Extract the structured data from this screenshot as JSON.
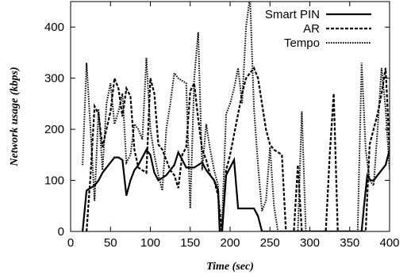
{
  "chart_data": {
    "type": "line",
    "title": "",
    "xlabel": "Time (sec)",
    "ylabel": "Network usage (kbps)",
    "xlim": [
      0,
      400
    ],
    "ylim": [
      0,
      450
    ],
    "xticks": [
      0,
      50,
      100,
      150,
      200,
      250,
      300,
      350,
      400
    ],
    "yticks": [
      0,
      100,
      200,
      300,
      400
    ],
    "grid": false,
    "legend_position": "top-right",
    "series": [
      {
        "name": "Smart PIN",
        "style": "solid",
        "color": "#000000",
        "x": [
          15,
          20,
          25,
          30,
          35,
          40,
          45,
          50,
          55,
          60,
          65,
          70,
          75,
          80,
          85,
          90,
          95,
          100,
          105,
          110,
          115,
          120,
          125,
          130,
          135,
          140,
          145,
          150,
          155,
          160,
          165,
          170,
          175,
          180,
          185,
          187,
          190,
          195,
          200,
          205,
          210,
          215,
          220,
          225,
          230,
          235,
          240,
          245,
          250,
          260,
          270,
          280,
          290,
          300,
          310,
          320,
          330,
          340,
          350,
          360,
          365,
          368,
          372,
          376,
          380,
          385,
          390,
          395,
          400
        ],
        "y": [
          0,
          80,
          85,
          90,
          100,
          115,
          125,
          135,
          145,
          145,
          140,
          70,
          100,
          120,
          130,
          145,
          160,
          150,
          115,
          100,
          105,
          110,
          120,
          130,
          155,
          140,
          125,
          125,
          125,
          130,
          135,
          120,
          110,
          100,
          80,
          0,
          0,
          110,
          125,
          140,
          45,
          45,
          45,
          45,
          45,
          30,
          0,
          0,
          0,
          0,
          0,
          0,
          0,
          0,
          0,
          0,
          0,
          0,
          0,
          0,
          0,
          50,
          110,
          100,
          100,
          110,
          120,
          130,
          160
        ]
      },
      {
        "name": "AR",
        "style": "dashed",
        "color": "#000000",
        "x": [
          20,
          25,
          30,
          35,
          40,
          45,
          50,
          55,
          60,
          65,
          70,
          75,
          80,
          85,
          90,
          95,
          100,
          105,
          110,
          115,
          120,
          125,
          130,
          135,
          140,
          145,
          150,
          155,
          160,
          165,
          170,
          175,
          180,
          185,
          190,
          195,
          200,
          205,
          210,
          215,
          220,
          225,
          230,
          235,
          240,
          245,
          250,
          255,
          260,
          265,
          270,
          275,
          280,
          285,
          290,
          295,
          300,
          305,
          310,
          315,
          320,
          325,
          330,
          335,
          340,
          345,
          350,
          355,
          360,
          365,
          370,
          375,
          380,
          385,
          390,
          395,
          400
        ],
        "y": [
          0,
          110,
          245,
          230,
          165,
          200,
          235,
          300,
          280,
          225,
          280,
          265,
          160,
          125,
          120,
          115,
          300,
          270,
          170,
          160,
          140,
          120,
          110,
          85,
          150,
          165,
          275,
          290,
          220,
          160,
          140,
          110,
          100,
          70,
          0,
          120,
          150,
          190,
          230,
          270,
          300,
          310,
          320,
          300,
          250,
          200,
          170,
          160,
          155,
          150,
          0,
          0,
          0,
          130,
          0,
          0,
          0,
          0,
          0,
          0,
          0,
          150,
          270,
          0,
          0,
          0,
          0,
          0,
          0,
          0,
          0,
          170,
          200,
          230,
          270,
          320,
          160
        ]
      },
      {
        "name": "Tempo",
        "style": "dotted",
        "color": "#000000",
        "x": [
          15,
          20,
          25,
          30,
          35,
          40,
          45,
          50,
          55,
          60,
          65,
          70,
          75,
          80,
          85,
          90,
          95,
          100,
          105,
          110,
          115,
          120,
          125,
          130,
          135,
          140,
          145,
          150,
          155,
          160,
          165,
          170,
          175,
          180,
          185,
          187,
          190,
          195,
          200,
          205,
          210,
          215,
          220,
          225,
          230,
          235,
          240,
          245,
          250,
          255,
          260,
          265,
          270,
          275,
          280,
          285,
          290,
          295,
          300,
          305,
          310,
          315,
          320,
          325,
          330,
          335,
          340,
          345,
          350,
          355,
          360,
          365,
          370,
          375,
          380,
          385,
          390,
          395,
          400
        ],
        "y": [
          130,
          330,
          200,
          60,
          240,
          120,
          250,
          290,
          210,
          235,
          270,
          135,
          150,
          210,
          200,
          180,
          340,
          200,
          150,
          110,
          80,
          200,
          250,
          310,
          300,
          295,
          290,
          45,
          300,
          390,
          120,
          210,
          160,
          120,
          90,
          0,
          20,
          230,
          250,
          280,
          320,
          250,
          400,
          460,
          240,
          130,
          40,
          60,
          165,
          50,
          0,
          0,
          0,
          0,
          0,
          0,
          235,
          0,
          0,
          0,
          0,
          0,
          0,
          0,
          0,
          0,
          0,
          0,
          0,
          0,
          0,
          330,
          160,
          100,
          90,
          200,
          320,
          240,
          120
        ]
      }
    ]
  }
}
